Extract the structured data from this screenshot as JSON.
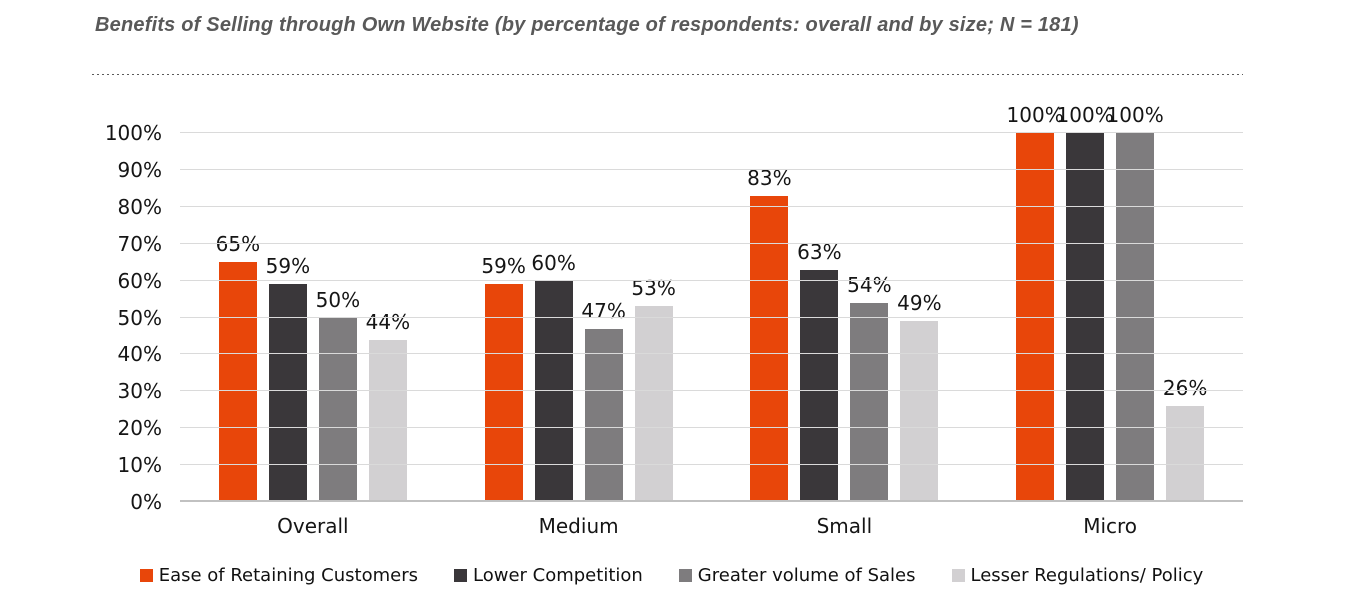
{
  "title": "Benefits of Selling through Own Website (by percentage of respondents: overall and by size; N = 181)",
  "colors": {
    "series_ease": "#E8460A",
    "series_competition": "#3A373A",
    "series_volume": "#7E7C7E",
    "series_regulations": "#D2D0D2",
    "gridline": "#DADADA",
    "axis_baseline": "#C1C1C1",
    "title_text": "#595959",
    "label_text": "#151515"
  },
  "chart_data": {
    "type": "bar",
    "title": "Benefits of Selling through Own Website (by percentage of respondents: overall and by size; N = 181)",
    "categories": [
      "Overall",
      "Medium",
      "Small",
      "Micro"
    ],
    "series": [
      {
        "name": "Ease of Retaining Customers",
        "color": "#E8460A",
        "values": [
          65,
          59,
          83,
          100
        ]
      },
      {
        "name": "Lower Competition",
        "color": "#3A373A",
        "values": [
          59,
          60,
          63,
          100
        ]
      },
      {
        "name": "Greater volume of Sales",
        "color": "#7E7C7E",
        "values": [
          50,
          47,
          54,
          100
        ]
      },
      {
        "name": "Lesser Regulations/ Policy",
        "color": "#D2D0D2",
        "values": [
          44,
          53,
          49,
          26
        ]
      }
    ],
    "data_labels": {
      "Overall": [
        "65%",
        "59%",
        "50%",
        "44%"
      ],
      "Medium": [
        "59%",
        "60%",
        "47%",
        "53%"
      ],
      "Small": [
        "83%",
        "63%",
        "54%",
        "49%"
      ],
      "Micro": [
        "100%",
        "100%",
        "100%",
        "26%"
      ]
    },
    "xlabel": "",
    "ylabel": "",
    "y_axis": {
      "min": 0,
      "max": 100,
      "step": 10,
      "tick_suffix": "%",
      "tick_labels": [
        "0%",
        "10%",
        "20%",
        "30%",
        "40%",
        "50%",
        "60%",
        "70%",
        "80%",
        "90%",
        "100%"
      ]
    },
    "ylim": [
      0,
      100
    ],
    "grid": true,
    "legend_position": "bottom",
    "data_label_suffix": "%"
  }
}
